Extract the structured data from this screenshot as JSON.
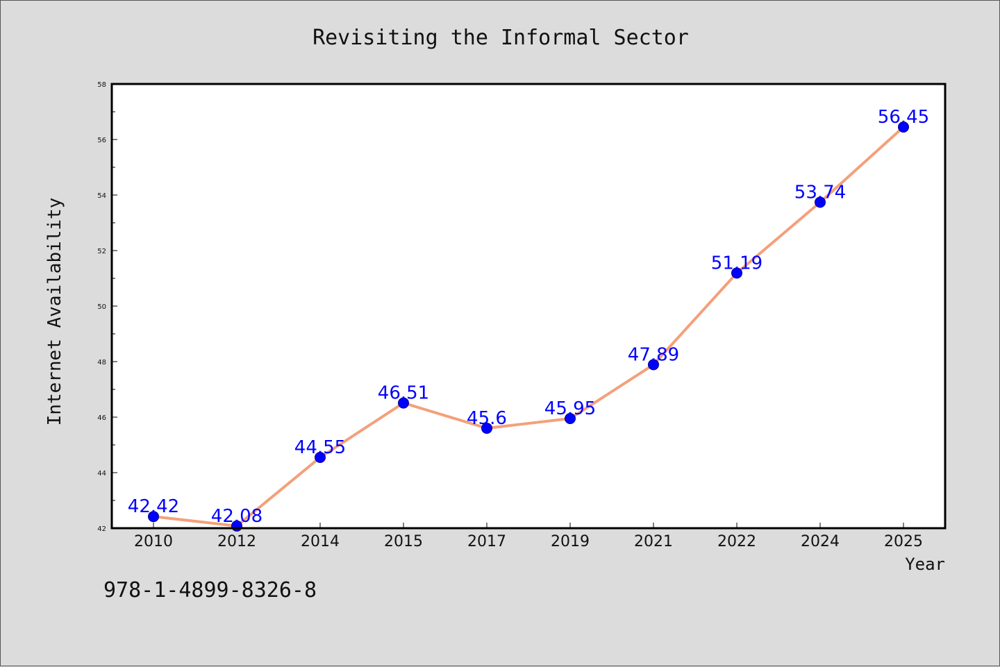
{
  "colors": {
    "background": "#dcdcdc",
    "plot_area": "#ffffff",
    "line": "#f4a07a",
    "marker": "#0000ff",
    "data_label": "#0000ff",
    "frame": "#000000"
  },
  "footer": {
    "isbn": "978-1-4899-8326-8"
  },
  "chart_data": {
    "type": "line",
    "title": "Revisiting the Informal Sector",
    "xlabel": "Year",
    "ylabel": "Internet Availability",
    "categories": [
      "2010",
      "2012",
      "2014",
      "2015",
      "2017",
      "2019",
      "2021",
      "2022",
      "2024",
      "2025"
    ],
    "series": [
      {
        "values": [
          42.42,
          42.08,
          44.55,
          46.51,
          45.6,
          45.95,
          47.89,
          51.19,
          53.74,
          56.45
        ],
        "labels": [
          "42.42",
          "42.08",
          "44.55",
          "46.51",
          "45.6",
          "45.95",
          "47.89",
          "51.19",
          "53.74",
          "56.45"
        ]
      }
    ],
    "ylim": [
      42,
      58
    ],
    "yticks": [
      42,
      44,
      46,
      48,
      50,
      52,
      54,
      56,
      58
    ],
    "grid": false,
    "legend": "none"
  }
}
